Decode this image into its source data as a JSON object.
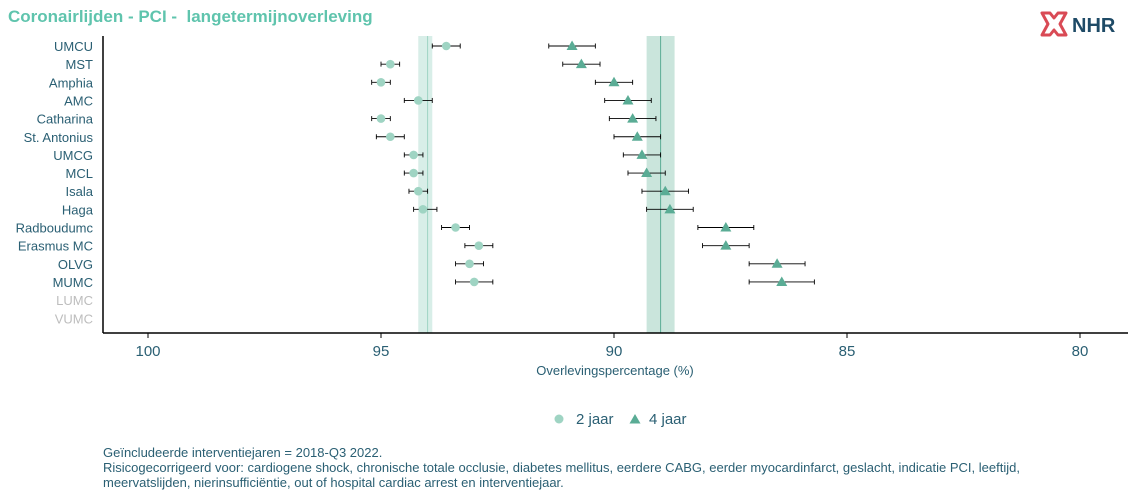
{
  "title": "Coronairlijden - PCI -  langetermijnoverleving",
  "logo": {
    "text": "NHR",
    "icon": "nhr-logo-icon"
  },
  "colors": {
    "title": "#5fc4ad",
    "series_2jaar": "#9fd4c3",
    "series_4jaar": "#5aac95",
    "text": "#2a5f73",
    "inactive_label": "#bdbdbd",
    "band_2jaar": "#d4ece5",
    "band_4jaar": "#c4e2d8",
    "logo_red": "#d94a55",
    "logo_navy": "#1e4a66"
  },
  "chart_data": {
    "type": "scatter",
    "orientation": "horizontal",
    "x_reversed": true,
    "xlim": [
      101,
      79
    ],
    "xticks": [
      100,
      95,
      90,
      85,
      80
    ],
    "xlabel": "Overlevingspercentage (%)",
    "categories": [
      "UMCU",
      "MST",
      "Amphia",
      "AMC",
      "Catharina",
      "St. Antonius",
      "UMCG",
      "MCL",
      "Isala",
      "Haga",
      "Radboudumc",
      "Erasmus MC",
      "OLVG",
      "MUMC",
      "LUMC",
      "VUMC"
    ],
    "inactive_categories": [
      "LUMC",
      "VUMC"
    ],
    "reference_bands": [
      {
        "series": "2 jaar",
        "center": 94.0,
        "low": 93.9,
        "high": 94.2
      },
      {
        "series": "4 jaar",
        "center": 89.0,
        "low": 88.7,
        "high": 89.3
      }
    ],
    "series": [
      {
        "name": "2 jaar",
        "marker": "circle",
        "values": [
          93.6,
          94.8,
          95.0,
          94.2,
          95.0,
          94.8,
          94.3,
          94.3,
          94.2,
          94.1,
          93.4,
          92.9,
          93.1,
          93.0,
          null,
          null
        ],
        "low": [
          93.3,
          94.6,
          94.8,
          93.9,
          94.8,
          94.5,
          94.1,
          94.1,
          94.0,
          93.8,
          93.1,
          92.6,
          92.8,
          92.6,
          null,
          null
        ],
        "high": [
          93.9,
          95.0,
          95.2,
          94.5,
          95.2,
          95.1,
          94.5,
          94.5,
          94.4,
          94.3,
          93.7,
          93.2,
          93.4,
          93.4,
          null,
          null
        ]
      },
      {
        "name": "4 jaar",
        "marker": "triangle",
        "values": [
          90.9,
          90.7,
          90.0,
          89.7,
          89.6,
          89.5,
          89.4,
          89.3,
          88.9,
          88.8,
          87.6,
          87.6,
          86.5,
          86.4,
          null,
          null
        ],
        "low": [
          90.4,
          90.3,
          89.6,
          89.2,
          89.1,
          89.0,
          89.0,
          88.9,
          88.4,
          88.3,
          87.0,
          87.1,
          85.9,
          85.7,
          null,
          null
        ],
        "high": [
          91.4,
          91.1,
          90.4,
          90.2,
          90.1,
          90.0,
          89.8,
          89.7,
          89.4,
          89.3,
          88.2,
          88.1,
          87.1,
          87.1,
          null,
          null
        ]
      }
    ]
  },
  "legend": [
    {
      "label": "2 jaar",
      "marker": "circle"
    },
    {
      "label": "4 jaar",
      "marker": "triangle"
    }
  ],
  "footnote": {
    "line1": "Geïncludeerde interventiejaren = 2018-Q3 2022.",
    "line2": "Risicogecorrigeerd voor: cardiogene shock, chronische totale occlusie, diabetes mellitus, eerdere CABG, eerder myocardinfarct, geslacht, indicatie PCI, leeftijd,",
    "line3": "meervatslijden, nierinsufficiëntie, out of hospital cardiac arrest en interventiejaar."
  }
}
